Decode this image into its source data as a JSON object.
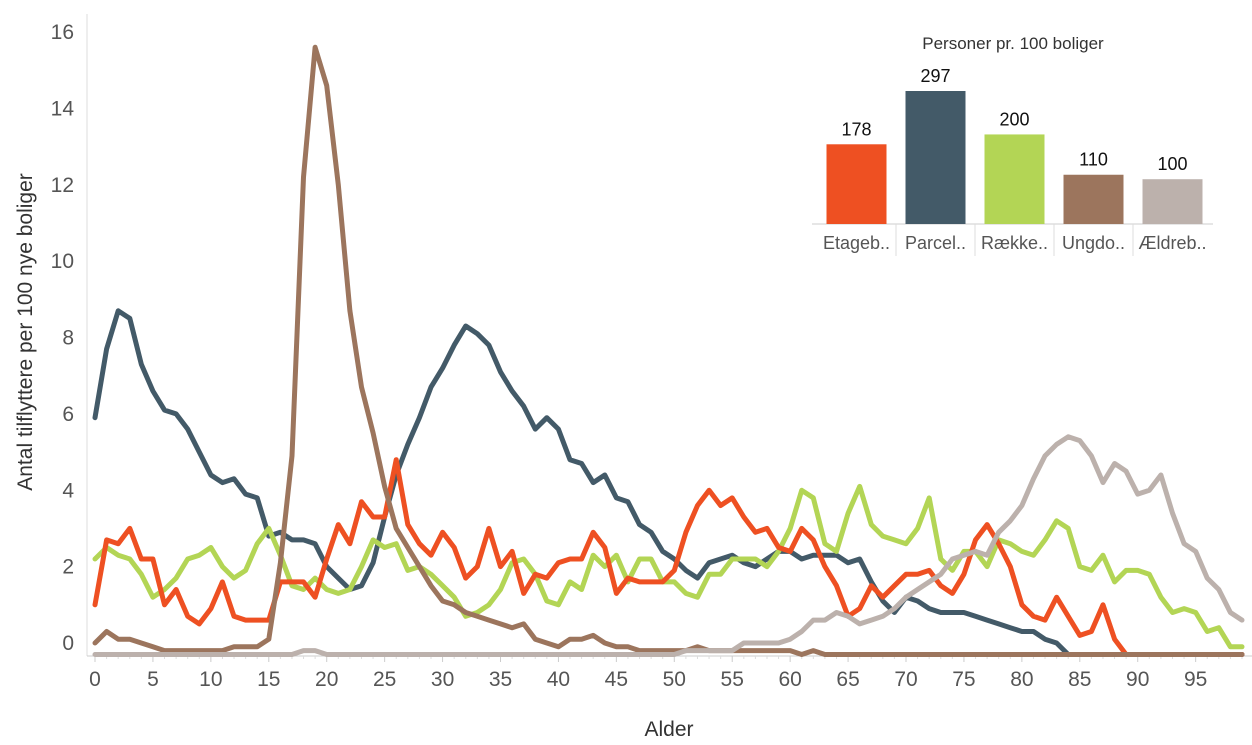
{
  "chart_data": [
    {
      "type": "line",
      "xlabel": "Alder",
      "ylabel": "Antal tilflyttere per 100 nye boliger",
      "xlim": [
        0,
        99
      ],
      "ylim": [
        -0.3,
        16.3
      ],
      "xticks": [
        "0",
        "5",
        "10",
        "15",
        "20",
        "25",
        "30",
        "35",
        "40",
        "45",
        "50",
        "55",
        "60",
        "65",
        "70",
        "75",
        "80",
        "85",
        "90",
        "95"
      ],
      "yticks": [
        "0",
        "2",
        "4",
        "6",
        "8",
        "10",
        "12",
        "14",
        "16"
      ],
      "grid": false,
      "legend": "none",
      "series": [
        {
          "color": "#435a68",
          "x": [
            0,
            1,
            2,
            3,
            4,
            5,
            6,
            7,
            8,
            9,
            10,
            11,
            12,
            13,
            14,
            15,
            16,
            17,
            18,
            19,
            20,
            21,
            22,
            23,
            24,
            25,
            26,
            27,
            28,
            29,
            30,
            31,
            32,
            33,
            34,
            35,
            36,
            37,
            38,
            39,
            40,
            41,
            42,
            43,
            44,
            45,
            46,
            47,
            48,
            49,
            50,
            51,
            52,
            53,
            54,
            55,
            56,
            57,
            58,
            59,
            60,
            61,
            62,
            63,
            64,
            65,
            66,
            67,
            68,
            69,
            70,
            71,
            72,
            73,
            74,
            75,
            76,
            77,
            78,
            79,
            80,
            81,
            82,
            83,
            84,
            85,
            86,
            87,
            88,
            89,
            90,
            91,
            92,
            93,
            94,
            95,
            96,
            97,
            98,
            99
          ],
          "values": [
            5.9,
            7.7,
            8.7,
            8.5,
            7.3,
            6.6,
            6.1,
            6.0,
            5.6,
            5.0,
            4.4,
            4.2,
            4.3,
            3.9,
            3.8,
            2.8,
            2.9,
            2.7,
            2.7,
            2.6,
            2.0,
            1.7,
            1.4,
            1.5,
            2.1,
            3.3,
            4.4,
            5.2,
            5.9,
            6.7,
            7.2,
            7.8,
            8.3,
            8.1,
            7.8,
            7.1,
            6.6,
            6.2,
            5.6,
            5.9,
            5.6,
            4.8,
            4.7,
            4.2,
            4.4,
            3.8,
            3.7,
            3.1,
            2.9,
            2.4,
            2.2,
            1.9,
            1.7,
            2.1,
            2.2,
            2.3,
            2.1,
            2.0,
            2.2,
            2.4,
            2.4,
            2.2,
            2.3,
            2.3,
            2.3,
            2.1,
            2.2,
            1.6,
            1.1,
            0.8,
            1.2,
            1.1,
            0.9,
            0.8,
            0.8,
            0.8,
            0.7,
            0.6,
            0.5,
            0.4,
            0.3,
            0.3,
            0.1,
            0,
            -0.3,
            -0.3,
            -0.3,
            -0.3,
            -0.3,
            -0.3,
            -0.3,
            -0.3,
            -0.3,
            -0.3,
            -0.3,
            -0.3,
            -0.3,
            -0.3,
            -0.3,
            -0.3
          ]
        },
        {
          "color": "#b3d555",
          "x": [
            0,
            1,
            2,
            3,
            4,
            5,
            6,
            7,
            8,
            9,
            10,
            11,
            12,
            13,
            14,
            15,
            16,
            17,
            18,
            19,
            20,
            21,
            22,
            23,
            24,
            25,
            26,
            27,
            28,
            29,
            30,
            31,
            32,
            33,
            34,
            35,
            36,
            37,
            38,
            39,
            40,
            41,
            42,
            43,
            44,
            45,
            46,
            47,
            48,
            49,
            50,
            51,
            52,
            53,
            54,
            55,
            56,
            57,
            58,
            59,
            60,
            61,
            62,
            63,
            64,
            65,
            66,
            67,
            68,
            69,
            70,
            71,
            72,
            73,
            74,
            75,
            76,
            77,
            78,
            79,
            80,
            81,
            82,
            83,
            84,
            85,
            86,
            87,
            88,
            89,
            90,
            91,
            92,
            93,
            94,
            95,
            96,
            97,
            98,
            99
          ],
          "values": [
            2.2,
            2.5,
            2.3,
            2.2,
            1.8,
            1.2,
            1.4,
            1.7,
            2.2,
            2.3,
            2.5,
            2.0,
            1.7,
            1.9,
            2.6,
            3.0,
            2.3,
            1.5,
            1.4,
            1.7,
            1.4,
            1.3,
            1.4,
            2.0,
            2.7,
            2.5,
            2.6,
            1.9,
            2.0,
            1.8,
            1.5,
            1.2,
            0.7,
            0.8,
            1.0,
            1.4,
            2.1,
            2.2,
            1.8,
            1.1,
            1.0,
            1.6,
            1.4,
            2.3,
            2.0,
            2.3,
            1.6,
            2.2,
            2.2,
            1.6,
            1.6,
            1.3,
            1.2,
            1.8,
            1.8,
            2.2,
            2.2,
            2.2,
            2.0,
            2.4,
            3.0,
            4.0,
            3.8,
            2.6,
            2.4,
            3.4,
            4.1,
            3.1,
            2.8,
            2.7,
            2.6,
            3.0,
            3.8,
            2.2,
            1.9,
            2.4,
            2.4,
            2.0,
            2.7,
            2.6,
            2.4,
            2.3,
            2.7,
            3.2,
            3.0,
            2.0,
            1.9,
            2.3,
            1.6,
            1.9,
            1.9,
            1.8,
            1.2,
            0.8,
            0.9,
            0.8,
            0.3,
            0.4,
            -0.1,
            -0.1
          ]
        },
        {
          "color": "#ee5022",
          "x": [
            0,
            1,
            2,
            3,
            4,
            5,
            6,
            7,
            8,
            9,
            10,
            11,
            12,
            13,
            14,
            15,
            16,
            17,
            18,
            19,
            20,
            21,
            22,
            23,
            24,
            25,
            26,
            27,
            28,
            29,
            30,
            31,
            32,
            33,
            34,
            35,
            36,
            37,
            38,
            39,
            40,
            41,
            42,
            43,
            44,
            45,
            46,
            47,
            48,
            49,
            50,
            51,
            52,
            53,
            54,
            55,
            56,
            57,
            58,
            59,
            60,
            61,
            62,
            63,
            64,
            65,
            66,
            67,
            68,
            69,
            70,
            71,
            72,
            73,
            74,
            75,
            76,
            77,
            78,
            79,
            80,
            81,
            82,
            83,
            84,
            85,
            86,
            87,
            88,
            89,
            90,
            91,
            92,
            93,
            94,
            95,
            96,
            97,
            98,
            99
          ],
          "values": [
            1.0,
            2.7,
            2.6,
            3.0,
            2.2,
            2.2,
            1.0,
            1.4,
            0.7,
            0.5,
            0.9,
            1.6,
            0.7,
            0.6,
            0.6,
            0.6,
            1.6,
            1.6,
            1.6,
            1.2,
            2.2,
            3.1,
            2.6,
            3.7,
            3.3,
            3.3,
            4.8,
            3.1,
            2.6,
            2.3,
            2.9,
            2.5,
            1.7,
            2.0,
            3.0,
            2.0,
            2.4,
            1.3,
            1.8,
            1.7,
            2.1,
            2.2,
            2.2,
            2.9,
            2.5,
            1.3,
            1.7,
            1.6,
            1.6,
            1.6,
            1.9,
            2.9,
            3.6,
            4.0,
            3.6,
            3.8,
            3.3,
            2.9,
            3.0,
            2.5,
            2.4,
            3.0,
            2.7,
            2.0,
            1.5,
            0.7,
            0.9,
            1.5,
            1.2,
            1.5,
            1.8,
            1.8,
            1.9,
            1.5,
            1.3,
            1.8,
            2.7,
            3.1,
            2.6,
            2.0,
            1.0,
            0.7,
            0.6,
            1.2,
            0.7,
            0.2,
            0.3,
            1.0,
            0.1,
            -0.3,
            -0.3,
            -0.3,
            -0.3,
            -0.3,
            -0.3,
            -0.3,
            -0.3,
            -0.3,
            -0.3,
            -0.3
          ]
        },
        {
          "color": "#9c755d",
          "x": [
            0,
            1,
            2,
            3,
            4,
            5,
            6,
            7,
            8,
            9,
            10,
            11,
            12,
            13,
            14,
            15,
            16,
            17,
            18,
            19,
            20,
            21,
            22,
            23,
            24,
            25,
            26,
            27,
            28,
            29,
            30,
            31,
            32,
            33,
            34,
            35,
            36,
            37,
            38,
            39,
            40,
            41,
            42,
            43,
            44,
            45,
            46,
            47,
            48,
            49,
            50,
            51,
            52,
            53,
            54,
            55,
            56,
            57,
            58,
            59,
            60,
            61,
            62,
            63,
            64,
            65,
            66,
            67,
            68,
            69,
            70,
            71,
            72,
            73,
            74,
            75,
            76,
            77,
            78,
            79,
            80,
            81,
            82,
            83,
            84,
            85,
            86,
            87,
            88,
            89,
            90,
            91,
            92,
            93,
            94,
            95,
            96,
            97,
            98,
            99
          ],
          "values": [
            0.0,
            0.3,
            0.1,
            0.1,
            0.0,
            -0.1,
            -0.2,
            -0.2,
            -0.2,
            -0.2,
            -0.2,
            -0.2,
            -0.1,
            -0.1,
            -0.1,
            0.1,
            2.1,
            4.9,
            12.2,
            15.6,
            14.6,
            12.0,
            8.7,
            6.7,
            5.5,
            4.1,
            3.0,
            2.5,
            2.0,
            1.5,
            1.1,
            1.0,
            0.8,
            0.7,
            0.6,
            0.5,
            0.4,
            0.5,
            0.1,
            0.0,
            -0.1,
            0.1,
            0.1,
            0.2,
            0.0,
            -0.1,
            -0.1,
            -0.2,
            -0.2,
            -0.2,
            -0.2,
            -0.2,
            -0.1,
            -0.2,
            -0.2,
            -0.2,
            -0.2,
            -0.2,
            -0.2,
            -0.2,
            -0.2,
            -0.3,
            -0.2,
            -0.3,
            -0.3,
            -0.3,
            -0.3,
            -0.3,
            -0.3,
            -0.3,
            -0.3,
            -0.3,
            -0.3,
            -0.3,
            -0.3,
            -0.3,
            -0.3,
            -0.3,
            -0.3,
            -0.3,
            -0.3,
            -0.3,
            -0.3,
            -0.3,
            -0.3,
            -0.3,
            -0.3,
            -0.3,
            -0.3,
            -0.3,
            -0.3,
            -0.3,
            -0.3,
            -0.3,
            -0.3,
            -0.3,
            -0.3,
            -0.3,
            -0.3,
            -0.3
          ]
        },
        {
          "color": "#bcb1ac",
          "x": [
            0,
            1,
            2,
            3,
            4,
            5,
            6,
            7,
            8,
            9,
            10,
            11,
            12,
            13,
            14,
            15,
            16,
            17,
            18,
            19,
            20,
            21,
            22,
            23,
            24,
            25,
            26,
            27,
            28,
            29,
            30,
            31,
            32,
            33,
            34,
            35,
            36,
            37,
            38,
            39,
            40,
            41,
            42,
            43,
            44,
            45,
            46,
            47,
            48,
            49,
            50,
            51,
            52,
            53,
            54,
            55,
            56,
            57,
            58,
            59,
            60,
            61,
            62,
            63,
            64,
            65,
            66,
            67,
            68,
            69,
            70,
            71,
            72,
            73,
            74,
            75,
            76,
            77,
            78,
            79,
            80,
            81,
            82,
            83,
            84,
            85,
            86,
            87,
            88,
            89,
            90,
            91,
            92,
            93,
            94,
            95,
            96,
            97,
            98,
            99
          ],
          "values": [
            -0.3,
            -0.3,
            -0.3,
            -0.3,
            -0.3,
            -0.3,
            -0.3,
            -0.3,
            -0.3,
            -0.3,
            -0.3,
            -0.3,
            -0.3,
            -0.3,
            -0.3,
            -0.3,
            -0.3,
            -0.3,
            -0.2,
            -0.2,
            -0.3,
            -0.3,
            -0.3,
            -0.3,
            -0.3,
            -0.3,
            -0.3,
            -0.3,
            -0.3,
            -0.3,
            -0.3,
            -0.3,
            -0.3,
            -0.3,
            -0.3,
            -0.3,
            -0.3,
            -0.3,
            -0.3,
            -0.3,
            -0.3,
            -0.3,
            -0.3,
            -0.3,
            -0.3,
            -0.3,
            -0.3,
            -0.3,
            -0.3,
            -0.3,
            -0.3,
            -0.2,
            -0.2,
            -0.2,
            -0.2,
            -0.2,
            0.0,
            0.0,
            0.0,
            0.0,
            0.1,
            0.3,
            0.6,
            0.6,
            0.8,
            0.7,
            0.5,
            0.6,
            0.7,
            0.9,
            1.2,
            1.4,
            1.6,
            1.8,
            2.2,
            2.3,
            2.4,
            2.3,
            2.9,
            3.2,
            3.6,
            4.3,
            4.9,
            5.2,
            5.4,
            5.3,
            4.9,
            4.2,
            4.7,
            4.5,
            3.9,
            4.0,
            4.4,
            3.4,
            2.6,
            2.4,
            1.7,
            1.4,
            0.8,
            0.6
          ]
        }
      ]
    },
    {
      "type": "bar",
      "title": "Personer pr. 100 boliger",
      "categories": [
        "Etageb..",
        "Parcel..",
        "Række..",
        "Ungdo..",
        "Ældreb.."
      ],
      "values": [
        178,
        297,
        200,
        110,
        100
      ],
      "value_labels": [
        "178",
        "297",
        "200",
        "110",
        "100"
      ],
      "colors": [
        "#ee5022",
        "#435a68",
        "#b3d555",
        "#9c755d",
        "#bcb1ac"
      ],
      "ylim": [
        0,
        330
      ],
      "legend": "none"
    }
  ]
}
